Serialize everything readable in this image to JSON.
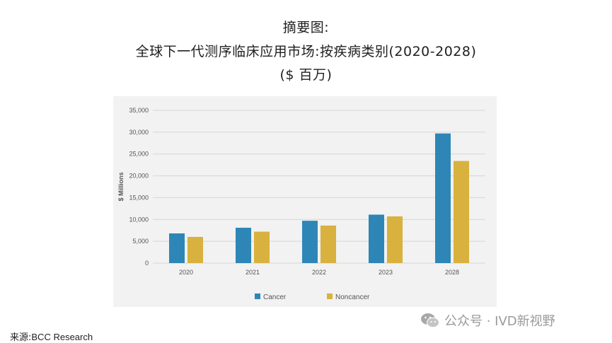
{
  "title": {
    "line1": "摘要图:",
    "line2": "全球下一代测序临床应用市场:按疾病类别(2020-2028)",
    "line3": "($ 百万)"
  },
  "source": {
    "label": "来源:",
    "value": "BCC Research"
  },
  "watermark": {
    "text": "公众号 · IVD新视野",
    "icon": "wechat-icon"
  },
  "chart_data": {
    "type": "bar",
    "categories": [
      "2020",
      "2021",
      "2022",
      "2023",
      "2028"
    ],
    "series": [
      {
        "name": "Cancer",
        "color": "#2e86b7",
        "values": [
          6800,
          8100,
          9700,
          11100,
          29700
        ]
      },
      {
        "name": "Noncancer",
        "color": "#d9b13e",
        "values": [
          6000,
          7200,
          8600,
          10700,
          23400
        ]
      }
    ],
    "ylabel": "$ Millions",
    "xlabel": "",
    "ylim": [
      0,
      35000
    ],
    "yticks": [
      "0",
      "5,000",
      "10,000",
      "15,000",
      "20,000",
      "25,000",
      "30,000",
      "35,000"
    ],
    "ytick_values": [
      0,
      5000,
      10000,
      15000,
      20000,
      25000,
      30000,
      35000
    ],
    "grid": true,
    "legend_position": "bottom"
  }
}
